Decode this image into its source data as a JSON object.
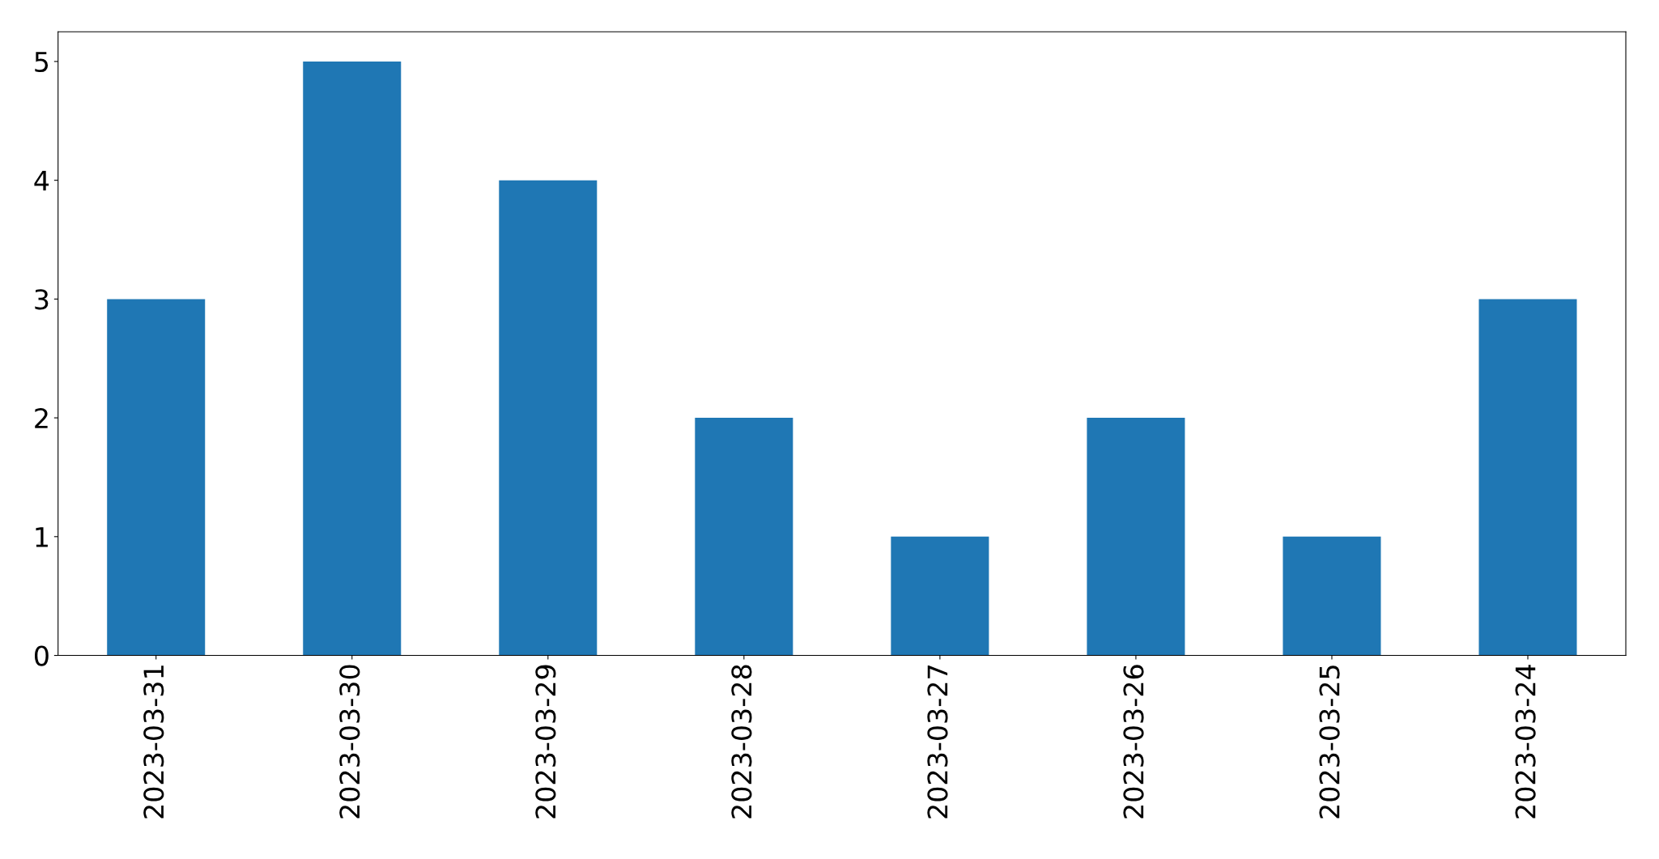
{
  "chart_data": {
    "type": "bar",
    "categories": [
      "2023-03-31",
      "2023-03-30",
      "2023-03-29",
      "2023-03-28",
      "2023-03-27",
      "2023-03-26",
      "2023-03-25",
      "2023-03-24"
    ],
    "values": [
      3,
      5,
      4,
      2,
      1,
      2,
      1,
      3
    ],
    "color": "#1f77b4",
    "ylim": [
      0,
      5.25
    ],
    "yticks": [
      0,
      1,
      2,
      3,
      4,
      5
    ]
  }
}
